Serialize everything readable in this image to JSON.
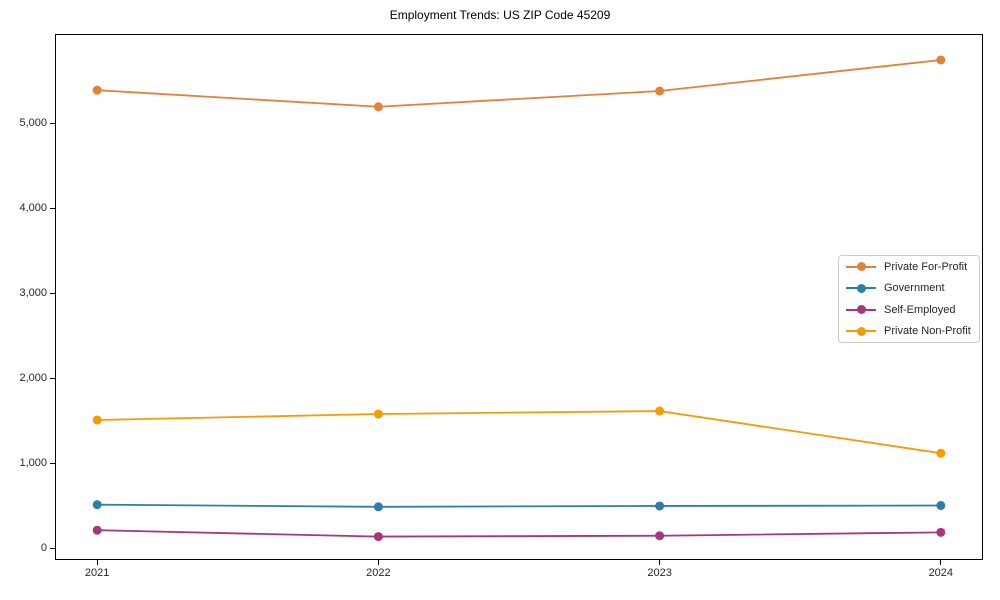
{
  "chart_data": {
    "type": "line",
    "title": "Employment Trends: US ZIP Code 45209",
    "xlabel": "",
    "ylabel": "",
    "x": [
      2021,
      2022,
      2023,
      2024
    ],
    "x_tick_labels": [
      "2021",
      "2022",
      "2023",
      "2024"
    ],
    "y_ticks": [
      0,
      1000,
      2000,
      3000,
      4000,
      5000
    ],
    "y_tick_labels": [
      "0",
      "1,000",
      "2,000",
      "3,000",
      "4,000",
      "5,000"
    ],
    "xlim": [
      2020.85,
      2024.15
    ],
    "ylim": [
      -130,
      6050
    ],
    "grid": false,
    "marker": "circle",
    "legend_position": "center right",
    "series": [
      {
        "name": "Private For-Profit",
        "color": "#e0823d",
        "values": [
          5390,
          5195,
          5380,
          5745
        ]
      },
      {
        "name": "Government",
        "color": "#2e7fa7",
        "values": [
          520,
          495,
          505,
          510
        ]
      },
      {
        "name": "Self-Employed",
        "color": "#a53680",
        "values": [
          220,
          145,
          155,
          195
        ]
      },
      {
        "name": "Private Non-Profit",
        "color": "#f49c06",
        "values": [
          1515,
          1585,
          1620,
          1125
        ]
      }
    ]
  }
}
